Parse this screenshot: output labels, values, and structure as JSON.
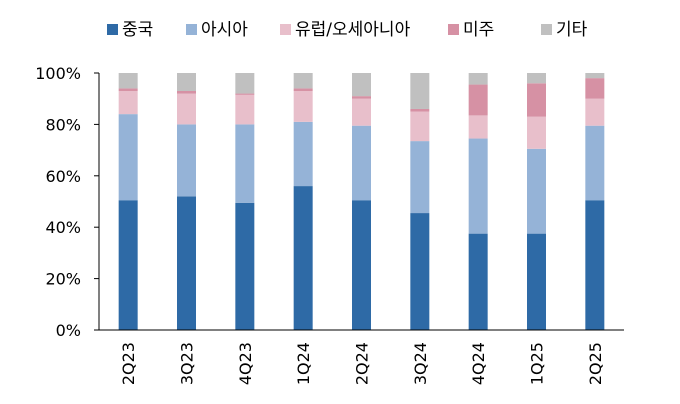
{
  "chart_data": {
    "type": "bar",
    "stacked": true,
    "categories": [
      "2Q23",
      "3Q23",
      "4Q23",
      "1Q24",
      "2Q24",
      "3Q24",
      "4Q24",
      "1Q25",
      "2Q25"
    ],
    "series": [
      {
        "name": "중국",
        "color": "#2e6aa6",
        "values": [
          50.5,
          52,
          49.5,
          56,
          50.5,
          45.5,
          37.5,
          37.5,
          50.5
        ]
      },
      {
        "name": "아시아",
        "color": "#95b3d7",
        "values": [
          33.5,
          28,
          30.5,
          25,
          29,
          28,
          37,
          33,
          29
        ]
      },
      {
        "name": "유럽/오세아니아",
        "color": "#e8bfcb",
        "values": [
          9,
          12,
          11.5,
          12,
          10.5,
          11.5,
          9,
          12.5,
          10.5
        ]
      },
      {
        "name": "미주",
        "color": "#d691a4",
        "values": [
          1,
          1,
          0.5,
          1,
          1,
          1,
          12,
          13,
          8
        ]
      },
      {
        "name": "기타",
        "color": "#c0c0c0",
        "values": [
          6,
          7,
          8,
          6,
          9,
          14,
          4.5,
          4,
          2
        ]
      }
    ],
    "ylim": [
      0,
      100
    ],
    "yticks": [
      "0%",
      "20%",
      "40%",
      "60%",
      "80%",
      "100%"
    ],
    "legend_position": "top",
    "grid": false
  }
}
